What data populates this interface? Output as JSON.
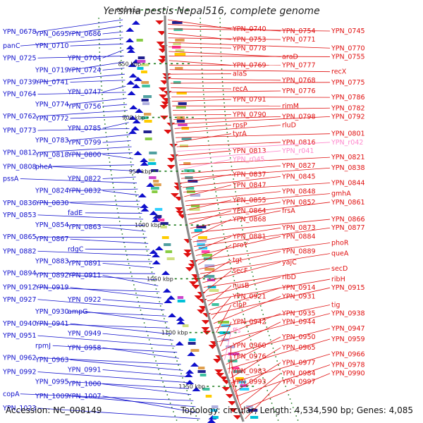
{
  "title": "Yersinia pestis Nepal516, complete genome",
  "accession_line": "Accession: NC_008149",
  "topology_line": "Topology: circular; Length: 4,534,590 bp; Genes: 4,085",
  "colors": {
    "minus_strand": "#1010cc",
    "plus_strand": "#e01010",
    "rna_gene": "#ff88cc",
    "backbone": "#8a8a8a",
    "tick": "#1a7a1a"
  },
  "kbp_ticks": [
    "800 kbp",
    "850 kbp",
    "900 kbp",
    "950 kbp",
    "1000 kbp",
    "1050 kbp",
    "1100 kbp",
    "1150 kbp"
  ],
  "left_genes": [
    "YPN_0678",
    "YPN_0695",
    "YPN_0686",
    "panC",
    "YPN_0710",
    "YPN_0704",
    "YPN_0725",
    "YPN_0719",
    "YPN_0724",
    "YPN_0739",
    "YPN_0741",
    "YPN_0747",
    "YPN_0764",
    "YPN_0774",
    "YPN_0756",
    "YPN_0762",
    "YPN_0772",
    "YPN_0785",
    "YPN_0773",
    "YPN_0783",
    "YPN_0799",
    "YPN_0812",
    "YPN_0818",
    "YPN_0800",
    "YPN_0808",
    "pheA",
    "YPN_0822",
    "pssA",
    "YPN_0824",
    "YPN_0832",
    "YPN_0836",
    "YPN_0830",
    "fadE",
    "YPN_0853",
    "YPN_0854",
    "YPN_0863",
    "YPN_0865",
    "YPN_0867",
    "rdgC",
    "YPN_0882",
    "YPN_0883",
    "YPN_0891",
    "YPN_0894",
    "YPN_0892",
    "YPN_0911",
    "YPN_0912",
    "YPN_0919",
    "YPN_0922",
    "YPN_0927",
    "YPN_0930",
    "ampG",
    "YPN_0940",
    "YPN_0941",
    "YPN_0949",
    "YPN_0951",
    "rpmJ",
    "YPN_0958",
    "YPN_0962",
    "YPN_0963",
    "YPN_0991",
    "YPN_0992",
    "YPN_0995",
    "YPN_1000",
    "copA",
    "YPN_1009",
    "YPN_1007",
    "YPN_1023"
  ],
  "right_genes": [
    "YPN_0740",
    "YPN_0754",
    "YPN_0745",
    "YPN_0753",
    "YPN_0771",
    "YPN_0770",
    "YPN_0778",
    "araD",
    "YPN_0755",
    "YPN_0769",
    "YPN_0777",
    "recX",
    "alaS",
    "YPN_0768",
    "YPN_0775",
    "recA",
    "YPN_0776",
    "YPN_0786",
    "YPN_0791",
    "rimM",
    "YPN_0782",
    "YPN_0790",
    "YPN_0798",
    "YPN_0792",
    "rpsP",
    "rluD",
    "YPN_0801",
    "tyrA",
    "YPN_0816",
    "YPN_r042",
    "YPN_0813",
    "YPN_r041",
    "YPN_0821",
    "YPN_r045",
    "YPN_0827",
    "YPN_0838",
    "YPN_0837",
    "YPN_0845",
    "YPN_0844",
    "YPN_0847",
    "YPN_0848",
    "gmhA",
    "YPN_0855",
    "YPN_0852",
    "YPN_0861",
    "YPN_0864",
    "frsA",
    "YPN_0866",
    "YPN_0868",
    "YPN_0873",
    "YPN_0877",
    "YPN_0881",
    "YPN_0884",
    "phoR",
    "proY",
    "YPN_0889",
    "queA",
    "tgt",
    "yajC",
    "secD",
    "secF",
    "ribD",
    "ribH",
    "nusB",
    "YPN_0914",
    "YPN_0915",
    "YPN_0921",
    "YPN_0931",
    "tig",
    "clpP",
    "YPN_0935",
    "YPN_0938",
    "YPN_0942",
    "YPN_0944",
    "YPN_0947",
    "ffs",
    "YPN_0950",
    "YPN_0959",
    "YPN_0960",
    "YPN_0965",
    "YPN_0966",
    "YPN_0976",
    "YPN_0977",
    "YPN_0978",
    "YPN_0983",
    "YPN_0984",
    "YPN_0990",
    "YPN_0993",
    "YPN_0997"
  ],
  "right_rna_genes": [
    "YPN_r042",
    "YPN_r041",
    "YPN_r045",
    "ffs"
  ]
}
